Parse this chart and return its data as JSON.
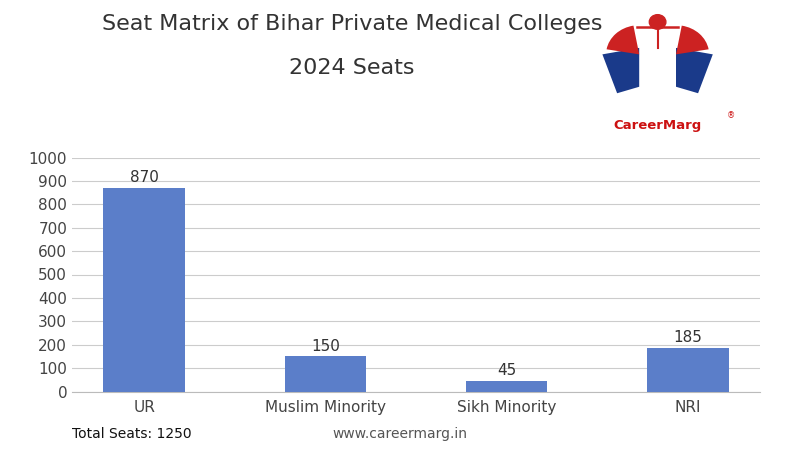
{
  "title_line1": "Seat Matrix of Bihar Private Medical Colleges",
  "title_line2": "2024 Seats",
  "categories": [
    "UR",
    "Muslim Minority",
    "Sikh Minority",
    "NRI"
  ],
  "values": [
    870,
    150,
    45,
    185
  ],
  "bar_color": "#5B7EC9",
  "ylim": [
    0,
    1000
  ],
  "yticks": [
    0,
    100,
    200,
    300,
    400,
    500,
    600,
    700,
    800,
    900,
    1000
  ],
  "total_seats_label": "Total Seats: 1250",
  "website_label": "www.careermarg.in",
  "background_color": "#ffffff",
  "grid_color": "#cccccc",
  "title_fontsize": 16,
  "label_fontsize": 11,
  "bar_label_fontsize": 11,
  "footer_fontsize": 10,
  "logo_text": "CareerMarg",
  "logo_text_color_career": "#cc1111",
  "logo_text_color_marg": "#cc1111"
}
